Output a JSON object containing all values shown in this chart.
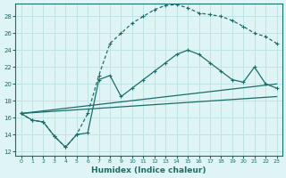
{
  "xlabel": "Humidex (Indice chaleur)",
  "bg_color": "#dff4f4",
  "grid_color": "#c0e4e4",
  "line_color": "#1a6e6a",
  "xlim": [
    -0.5,
    23.5
  ],
  "ylim": [
    11.5,
    29.5
  ],
  "yticks": [
    12,
    14,
    16,
    18,
    20,
    22,
    24,
    26,
    28
  ],
  "xticks": [
    0,
    1,
    2,
    3,
    4,
    5,
    6,
    7,
    8,
    9,
    10,
    11,
    12,
    13,
    14,
    15,
    16,
    17,
    18,
    19,
    20,
    21,
    22,
    23
  ],
  "curve1_x": [
    0,
    1,
    2,
    3,
    4,
    5,
    6,
    7,
    8,
    9,
    10,
    11,
    12,
    13,
    14,
    15,
    16,
    17,
    18,
    19,
    20,
    21,
    22,
    23
  ],
  "curve1_y": [
    16.5,
    15.7,
    15.5,
    13.8,
    12.5,
    14.0,
    16.5,
    21.0,
    24.8,
    26.0,
    27.2,
    28.0,
    28.8,
    29.3,
    29.4,
    29.0,
    28.4,
    28.2,
    28.0,
    27.5,
    26.8,
    26.0,
    25.6,
    24.8
  ],
  "curve2_x": [
    0,
    1,
    2,
    3,
    4,
    5,
    6,
    7,
    8,
    9,
    10,
    11,
    12,
    13,
    14,
    15,
    16,
    17,
    18,
    19,
    20,
    21,
    22,
    23
  ],
  "curve2_y": [
    16.5,
    15.7,
    15.5,
    13.8,
    12.5,
    14.0,
    14.2,
    20.5,
    21.0,
    18.5,
    19.5,
    20.5,
    21.5,
    22.5,
    23.5,
    24.0,
    23.5,
    22.5,
    21.5,
    20.5,
    20.2,
    22.0,
    20.0,
    19.5
  ],
  "line1_x": [
    0,
    23
  ],
  "line1_y": [
    16.5,
    20.0
  ],
  "line2_x": [
    0,
    23
  ],
  "line2_y": [
    16.5,
    18.5
  ]
}
